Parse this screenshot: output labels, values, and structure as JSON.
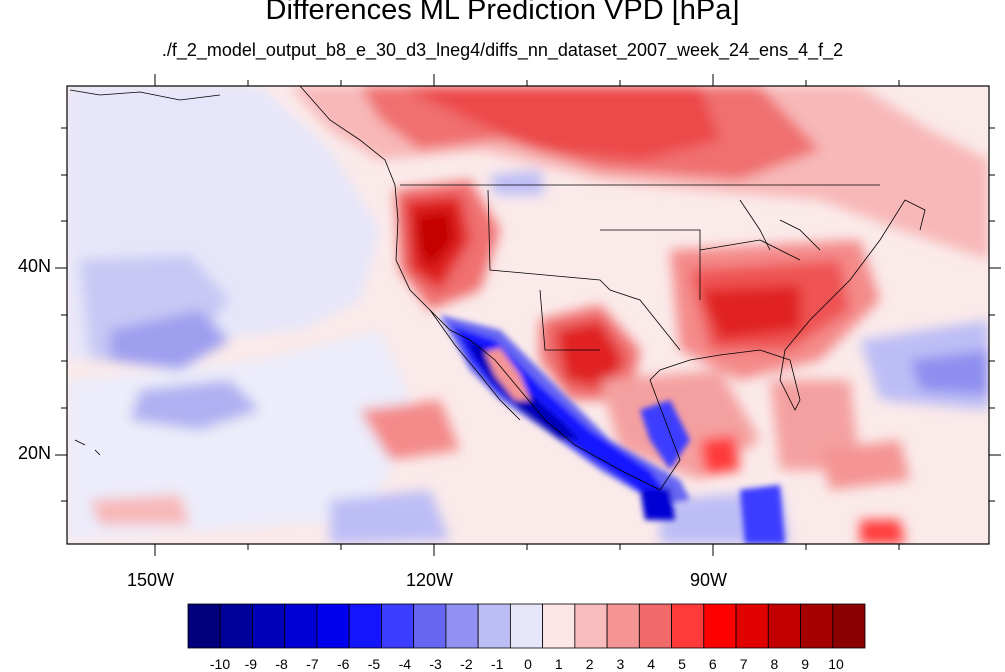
{
  "title": "Differences ML Prediction VPD [hPa]",
  "subtitle": "./f_2_model_output_b8_e_30_d3_lneg4/diffs_nn_dataset_2007_week_24_ens_4_f_2",
  "lat_labels": [
    "40N",
    "20N"
  ],
  "lon_labels": [
    "150W",
    "120W",
    "90W"
  ],
  "colorbar": {
    "labels": [
      "-10",
      "-9",
      "-8",
      "-7",
      "-6",
      "-5",
      "-4",
      "-3",
      "-2",
      "-1",
      "0",
      "1",
      "2",
      "3",
      "4",
      "5",
      "6",
      "7",
      "8",
      "9",
      "10"
    ],
    "colors": [
      "#00007a",
      "#00009a",
      "#0000b8",
      "#0000d4",
      "#0000ee",
      "#1414ff",
      "#3d3dff",
      "#6666f2",
      "#9191f2",
      "#bdbdf6",
      "#e6e6fa",
      "#fde6e6",
      "#f9bcbc",
      "#f59494",
      "#f06a6a",
      "#ff3a3a",
      "#ff0000",
      "#e00000",
      "#c20000",
      "#a50000",
      "#8a0000"
    ]
  }
}
